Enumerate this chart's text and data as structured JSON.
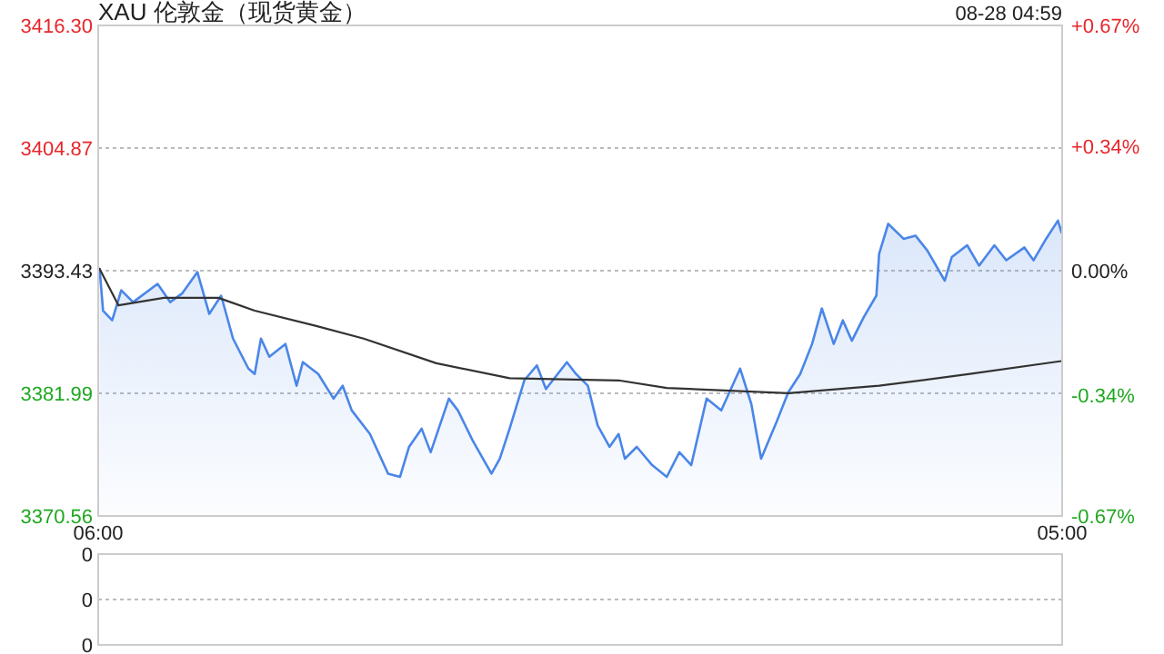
{
  "chart_data": [
    {
      "type": "area",
      "title": "XAU 伦敦金（现货黄金）",
      "annotations": [
        "08-28 04:59"
      ],
      "xlim": [
        "--08-27T06:00",
        "--08-28T05:00"
      ],
      "xticks": [
        {
          "value": "--08-27T06:00",
          "label": "06:00"
        },
        {
          "value": "--08-28T05:00",
          "label": "05:00"
        }
      ],
      "ylim": [
        3370.56,
        3416.3
      ],
      "yticks": [
        3370.56,
        3381.99,
        3393.43,
        3404.87,
        {
          "value": 3416.3,
          "label": "3416.30"
        }
      ],
      "y2lim": [
        -0.67,
        0.67
      ],
      "y2ticks": [
        {
          "value": -0.67,
          "label": "-0.67%"
        },
        {
          "value": -0.34,
          "label": "-0.34%"
        },
        {
          "value": 0,
          "label": "0.00%"
        },
        {
          "value": 0.34,
          "label": "+0.34%"
        },
        {
          "value": 0.67,
          "label": "+0.67%"
        }
      ],
      "grid": "y",
      "series": [
        {
          "color": "#4a86e8",
          "x": [
            "--08-27T06:02",
            "--08-27T06:07",
            "--08-27T06:20",
            "--08-27T06:33",
            "--08-27T06:50",
            "--08-27T07:25",
            "--08-27T07:43",
            "--08-27T08:00",
            "--08-27T08:22",
            "--08-27T08:39",
            "--08-27T08:56",
            "--08-27T09:13",
            "--08-27T09:35",
            "--08-27T09:44",
            "--08-27T09:53",
            "--08-27T10:05",
            "--08-27T10:28",
            "--08-27T10:44",
            "--08-27T10:53",
            "--08-27T11:15",
            "--08-27T11:37",
            "--08-27T11:50",
            "--08-27T12:03",
            "--08-27T12:29",
            "--08-27T12:55",
            "--08-27T13:12",
            "--08-27T13:25",
            "--08-27T13:43",
            "--08-27T13:56",
            "--08-27T14:22",
            "--08-27T14:35",
            "--08-27T14:56",
            "--08-27T15:23",
            "--08-27T15:35",
            "--08-27T15:49",
            "--08-27T16:10",
            "--08-27T16:28",
            "--08-27T16:41",
            "--08-27T17:11",
            "--08-27T17:24",
            "--08-27T17:41",
            "--08-27T17:55",
            "--08-27T18:12",
            "--08-27T18:25",
            "--08-27T18:34",
            "--08-27T18:51",
            "--08-27T19:13",
            "--08-27T19:34",
            "--08-27T19:52",
            "--08-27T20:09",
            "--08-27T20:31",
            "--08-27T20:52",
            "--08-27T21:19",
            "--08-27T21:35",
            "--08-27T21:49",
            "--08-27T22:11",
            "--08-27T22:28",
            "--08-27T22:45",
            "--08-27T23:02",
            "--08-27T23:16",
            "--08-27T23:33",
            "--08-27T23:46",
            "--08-27T23:59",
            "--08-28T00:16",
            "--08-28T00:34",
            "--08-28T00:38",
            "--08-28T00:51",
            "--08-28T01:13",
            "--08-28T01:30",
            "--08-28T01:47",
            "--08-28T02:12",
            "--08-28T02:22",
            "--08-28T02:44",
            "--08-28T03:01",
            "--08-28T03:23",
            "--08-28T03:40",
            "--08-28T04:06",
            "--08-28T04:19",
            "--08-28T04:37",
            "--08-28T04:54",
            "--08-28T04:59"
          ],
          "values": [
            3393.6,
            3389.7,
            3388.8,
            3391.6,
            3390.5,
            3392.2,
            3390.5,
            3391.3,
            3393.3,
            3389.4,
            3391.1,
            3387.1,
            3384.3,
            3383.8,
            3387.1,
            3385.4,
            3386.6,
            3382.7,
            3384.9,
            3383.8,
            3381.5,
            3382.7,
            3380.4,
            3378.2,
            3374.5,
            3374.2,
            3377.0,
            3378.7,
            3376.5,
            3381.5,
            3380.4,
            3377.6,
            3374.5,
            3375.9,
            3378.7,
            3383.2,
            3384.6,
            3382.4,
            3384.9,
            3383.8,
            3382.7,
            3379.0,
            3377.0,
            3378.2,
            3375.9,
            3377.0,
            3375.3,
            3374.2,
            3376.5,
            3375.3,
            3381.5,
            3380.4,
            3384.3,
            3381.0,
            3375.9,
            3379.3,
            3382.1,
            3383.8,
            3386.6,
            3389.9,
            3386.6,
            3388.8,
            3386.9,
            3389.1,
            3391.1,
            3395.0,
            3397.8,
            3396.4,
            3396.7,
            3395.3,
            3392.5,
            3394.7,
            3395.8,
            3393.9,
            3395.8,
            3394.4,
            3395.6,
            3394.4,
            3396.4,
            3398.1,
            3397.0
          ]
        },
        {
          "type": "line",
          "color": "#333333",
          "x": [
            "--08-27T06:02",
            "--08-27T06:29",
            "--08-27T07:34",
            "--08-27T08:52",
            "--08-27T09:44",
            "--08-27T11:11",
            "--08-27T12:20",
            "--08-27T14:04",
            "--08-27T15:49",
            "--08-27T18:25",
            "--08-27T19:34",
            "--08-27T22:28",
            "--08-28T00:38",
            "--08-28T02:48",
            "--08-28T04:59"
          ],
          "values": [
            3393.6,
            3390.2,
            3390.9,
            3390.9,
            3389.7,
            3388.3,
            3387.1,
            3384.8,
            3383.4,
            3383.2,
            3382.5,
            3382.0,
            3382.7,
            3383.8,
            3385.0
          ]
        }
      ]
    },
    {
      "type": "other",
      "annotations": [
        "0",
        "0",
        "0"
      ]
    }
  ]
}
